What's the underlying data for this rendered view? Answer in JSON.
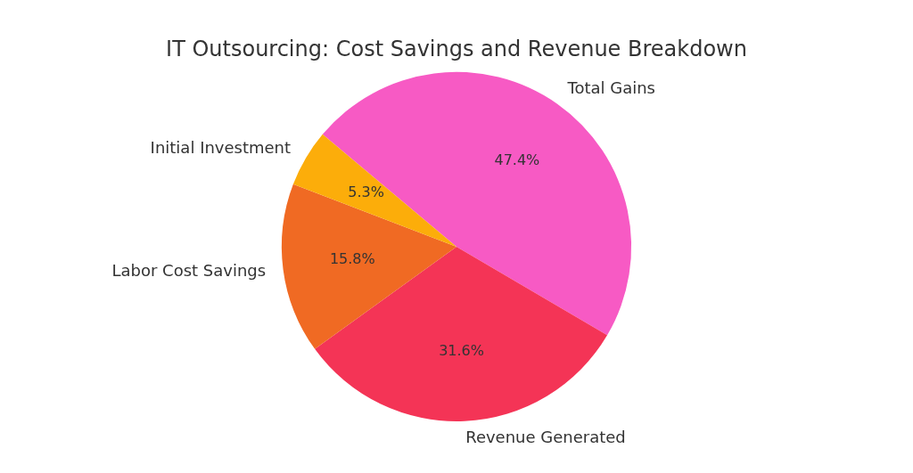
{
  "chart_data": {
    "type": "pie",
    "title": "IT Outsourcing: Cost Savings and Revenue Breakdown",
    "categories": [
      "Total Gains",
      "Revenue Generated",
      "Labor Cost Savings",
      "Initial Investment"
    ],
    "values": [
      47.4,
      31.6,
      15.8,
      5.3
    ],
    "value_labels": [
      "47.4%",
      "31.6%",
      "15.8%",
      "5.3%"
    ],
    "colors": [
      "#f75ac4",
      "#f43456",
      "#f06a23",
      "#fcad0a"
    ],
    "data_labels": true
  }
}
